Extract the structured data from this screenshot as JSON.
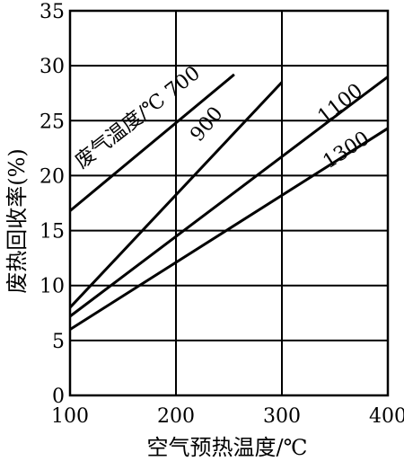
{
  "chart_data": {
    "type": "line",
    "title": "",
    "xlabel": "空气预热温度/℃",
    "ylabel": "废热回收率(%)",
    "xlim": [
      100,
      400
    ],
    "ylim": [
      0,
      35
    ],
    "xticks": [
      "100",
      "200",
      "300",
      "400"
    ],
    "yticks": [
      "0",
      "5",
      "10",
      "15",
      "20",
      "25",
      "30",
      "35"
    ],
    "grid": true,
    "legend_title": "废气温度/℃",
    "series": [
      {
        "name": "700",
        "x": [
          100,
          255
        ],
        "y": [
          16.8,
          29.2
        ]
      },
      {
        "name": "900",
        "x": [
          100,
          300
        ],
        "y": [
          8.0,
          28.5
        ]
      },
      {
        "name": "1100",
        "x": [
          100,
          400
        ],
        "y": [
          7.2,
          29.0
        ]
      },
      {
        "name": "1300",
        "x": [
          100,
          400
        ],
        "y": [
          6.0,
          24.3
        ]
      }
    ]
  }
}
